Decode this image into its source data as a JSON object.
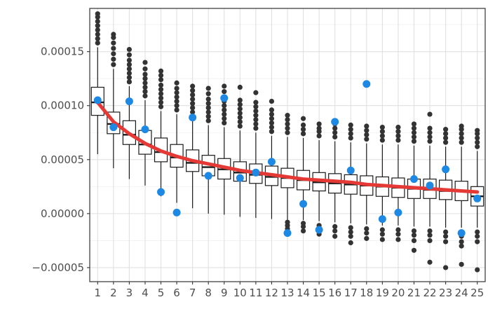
{
  "chart_data": {
    "type": "boxplot",
    "title": "",
    "xlabel": "",
    "ylabel": "",
    "categories": [
      "1",
      "2",
      "3",
      "4",
      "5",
      "6",
      "7",
      "8",
      "9",
      "10",
      "11",
      "12",
      "13",
      "14",
      "15",
      "16",
      "17",
      "18",
      "19",
      "20",
      "21",
      "22",
      "23",
      "24",
      "25"
    ],
    "y_ticks": [
      {
        "value": 0.00015,
        "label": "0.00015"
      },
      {
        "value": 0.0001,
        "label": "0.00010"
      },
      {
        "value": 5e-05,
        "label": "0.00005"
      },
      {
        "value": 0.0,
        "label": "0.00000"
      },
      {
        "value": -5e-05,
        "label": "−0.00005"
      }
    ],
    "ylim": [
      -6.3e-05,
      0.00019
    ],
    "grid": true,
    "colors": {
      "point": "#1e88e5",
      "curve": "#e53935",
      "outlier": "#333333",
      "box": "#1a1a1a",
      "grid_major": "#e0e0e0",
      "grid_minor": "#f0f0f0"
    },
    "boxes": [
      {
        "q1": 9.1e-05,
        "median": 0.000103,
        "q3": 0.000117,
        "whisker_low": 5.5e-05,
        "whisker_high": 0.000154,
        "outliers": [
          0.000158,
          0.000162,
          0.000166,
          0.00017,
          0.000174,
          0.000178,
          0.000182,
          0.000185
        ]
      },
      {
        "q1": 7.4e-05,
        "median": 8.3e-05,
        "q3": 9.4e-05,
        "whisker_low": 4.2e-05,
        "whisker_high": 0.000134,
        "outliers": [
          0.000138,
          0.000143,
          0.000148,
          0.000153,
          0.000158,
          0.000163,
          0.000166
        ]
      },
      {
        "q1": 6.4e-05,
        "median": 7.3e-05,
        "q3": 8.6e-05,
        "whisker_low": 3.2e-05,
        "whisker_high": 0.000118,
        "outliers": [
          0.000122,
          0.000126,
          0.00013,
          0.000134,
          0.000138,
          0.000142,
          0.000147,
          0.000152
        ]
      },
      {
        "q1": 5.5e-05,
        "median": 6.4e-05,
        "q3": 7.7e-05,
        "whisker_low": 2.6e-05,
        "whisker_high": 0.000105,
        "outliers": [
          0.000109,
          0.000113,
          0.000117,
          0.000121,
          0.000125,
          0.000129,
          0.000134,
          0.00014
        ]
      },
      {
        "q1": 4.8e-05,
        "median": 5.7e-05,
        "q3": 7e-05,
        "whisker_low": 1.6e-05,
        "whisker_high": 9.5e-05,
        "outliers": [
          9.9e-05,
          0.000103,
          0.000107,
          0.000111,
          0.000115,
          0.000119,
          0.000124,
          0.000128,
          0.000132
        ]
      },
      {
        "q1": 4.3e-05,
        "median": 5.2e-05,
        "q3": 6.4e-05,
        "whisker_low": 1e-05,
        "whisker_high": 9.2e-05,
        "outliers": [
          9.6e-05,
          0.0001,
          0.000104,
          0.000108,
          0.000112,
          0.000116,
          0.000121
        ]
      },
      {
        "q1": 3.9e-05,
        "median": 4.7e-05,
        "q3": 5.9e-05,
        "whisker_low": 5e-06,
        "whisker_high": 8.6e-05,
        "outliers": [
          9e-05,
          9.4e-05,
          9.8e-05,
          0.000102,
          0.000106,
          0.00011,
          0.000114,
          0.000118
        ]
      },
      {
        "q1": 3.5e-05,
        "median": 4.3e-05,
        "q3": 5.4e-05,
        "whisker_low": 0.0,
        "whisker_high": 8.2e-05,
        "outliers": [
          8.6e-05,
          9e-05,
          9.4e-05,
          9.8e-05,
          0.000102,
          0.000106,
          0.000111,
          0.000116
        ]
      },
      {
        "q1": 3.2e-05,
        "median": 4.1e-05,
        "q3": 5.1e-05,
        "whisker_low": -1e-06,
        "whisker_high": 8e-05,
        "outliers": [
          8.4e-05,
          8.8e-05,
          9.2e-05,
          9.6e-05,
          0.0001,
          0.000104,
          0.000108,
          0.000113,
          0.000118
        ]
      },
      {
        "q1": 3e-05,
        "median": 3.8e-05,
        "q3": 4.8e-05,
        "whisker_low": -3e-06,
        "whisker_high": 7.7e-05,
        "outliers": [
          8.1e-05,
          8.5e-05,
          8.9e-05,
          9.3e-05,
          9.7e-05,
          0.000101,
          0.000105,
          0.000117
        ]
      },
      {
        "q1": 2.8e-05,
        "median": 3.6e-05,
        "q3": 4.6e-05,
        "whisker_low": -4e-06,
        "whisker_high": 7.5e-05,
        "outliers": [
          7.9e-05,
          8.3e-05,
          8.7e-05,
          9.1e-05,
          9.5e-05,
          9.9e-05,
          0.000103,
          0.000112
        ]
      },
      {
        "q1": 2.6e-05,
        "median": 3.4e-05,
        "q3": 4.4e-05,
        "whisker_low": -5e-06,
        "whisker_high": 7.2e-05,
        "outliers": [
          7.6e-05,
          8e-05,
          8.4e-05,
          8.8e-05,
          9.2e-05,
          9.6e-05,
          0.000104
        ]
      },
      {
        "q1": 2.4e-05,
        "median": 3.3e-05,
        "q3": 4.2e-05,
        "whisker_low": -6e-06,
        "whisker_high": 7.1e-05,
        "outliers": [
          -8e-06,
          -1.1e-05,
          -1.4e-05,
          -1.8e-05,
          7.5e-05,
          7.9e-05,
          8.3e-05,
          8.7e-05,
          9.1e-05
        ]
      },
      {
        "q1": 2.2e-05,
        "median": 3.1e-05,
        "q3": 4e-05,
        "whisker_low": -6e-06,
        "whisker_high": 7e-05,
        "outliers": [
          -9e-06,
          -1.2e-05,
          -1.6e-05,
          7.4e-05,
          7.8e-05,
          8.2e-05,
          8.8e-05
        ]
      },
      {
        "q1": 2.1e-05,
        "median": 2.9e-05,
        "q3": 3.8e-05,
        "whisker_low": -7e-06,
        "whisker_high": 6.8e-05,
        "outliers": [
          -1.1e-05,
          -1.5e-05,
          -1.9e-05,
          7.2e-05,
          7.6e-05,
          7.9e-05,
          8.3e-05
        ]
      },
      {
        "q1": 1.9e-05,
        "median": 2.8e-05,
        "q3": 3.7e-05,
        "whisker_low": -8e-06,
        "whisker_high": 6.7e-05,
        "outliers": [
          -1.2e-05,
          -1.6e-05,
          -2.1e-05,
          7.1e-05,
          7.5e-05,
          7.9e-05,
          8.3e-05
        ]
      },
      {
        "q1": 1.8e-05,
        "median": 2.7e-05,
        "q3": 3.6e-05,
        "whisker_low": -9e-06,
        "whisker_high": 6.6e-05,
        "outliers": [
          -1.3e-05,
          -1.7e-05,
          -2.1e-05,
          -2.7e-05,
          7e-05,
          7.4e-05,
          7.8e-05,
          8.2e-05
        ]
      },
      {
        "q1": 1.7e-05,
        "median": 2.6e-05,
        "q3": 3.5e-05,
        "whisker_low": -1e-05,
        "whisker_high": 6.5e-05,
        "outliers": [
          -1.4e-05,
          -1.8e-05,
          -2.3e-05,
          6.9e-05,
          7.3e-05,
          7.7e-05,
          8.1e-05
        ]
      },
      {
        "q1": 1.6e-05,
        "median": 2.5e-05,
        "q3": 3.4e-05,
        "whisker_low": -1.1e-05,
        "whisker_high": 6.4e-05,
        "outliers": [
          -1.5e-05,
          -1.9e-05,
          -2.4e-05,
          6.8e-05,
          7.2e-05,
          7.6e-05,
          8e-05
        ]
      },
      {
        "q1": 1.5e-05,
        "median": 2.4e-05,
        "q3": 3.3e-05,
        "whisker_low": -1.1e-05,
        "whisker_high": 6.4e-05,
        "outliers": [
          -1.5e-05,
          -1.9e-05,
          -2.4e-05,
          6.8e-05,
          7.2e-05,
          7.6e-05,
          8e-05
        ]
      },
      {
        "q1": 1.4e-05,
        "median": 2.3e-05,
        "q3": 3.2e-05,
        "whisker_low": -1.2e-05,
        "whisker_high": 6.3e-05,
        "outliers": [
          -1.6e-05,
          -2e-05,
          -2.5e-05,
          -3.4e-05,
          6.7e-05,
          7.1e-05,
          7.5e-05,
          7.9e-05,
          8.3e-05
        ]
      },
      {
        "q1": 1.4e-05,
        "median": 2.2e-05,
        "q3": 3.2e-05,
        "whisker_low": -1.2e-05,
        "whisker_high": 6.3e-05,
        "outliers": [
          -1.6e-05,
          -2e-05,
          -2.5e-05,
          -4.5e-05,
          6.7e-05,
          7.1e-05,
          7.5e-05,
          7.9e-05,
          9.2e-05
        ]
      },
      {
        "q1": 1.3e-05,
        "median": 2.1e-05,
        "q3": 3.1e-05,
        "whisker_low": -1.3e-05,
        "whisker_high": 6.2e-05,
        "outliers": [
          -1.7e-05,
          -2.1e-05,
          -2.6e-05,
          -5e-05,
          6.6e-05,
          7e-05,
          7.4e-05,
          7.8e-05
        ]
      },
      {
        "q1": 1.2e-05,
        "median": 2.1e-05,
        "q3": 3e-05,
        "whisker_low": -1.3e-05,
        "whisker_high": 6.2e-05,
        "outliers": [
          -1.7e-05,
          -2.1e-05,
          -2.6e-05,
          -3e-05,
          -4.7e-05,
          6.6e-05,
          7e-05,
          7.4e-05,
          7.8e-05,
          8.1e-05
        ]
      },
      {
        "q1": 7e-06,
        "median": 1.6e-05,
        "q3": 2.5e-05,
        "whisker_low": -1.3e-05,
        "whisker_high": 5.8e-05,
        "outliers": [
          -1.7e-05,
          -2.1e-05,
          -2.6e-05,
          -5.2e-05,
          6.2e-05,
          6.6e-05,
          7e-05,
          7.4e-05,
          7.7e-05
        ]
      }
    ],
    "points": [
      0.000105,
      8e-05,
      0.000104,
      7.8e-05,
      2e-05,
      1e-06,
      8.9e-05,
      3.5e-05,
      0.000107,
      3.3e-05,
      3.8e-05,
      4.8e-05,
      -1.8e-05,
      9e-06,
      -1.5e-05,
      8.5e-05,
      4e-05,
      0.00012,
      -5e-06,
      1e-06,
      3.2e-05,
      2.6e-05,
      4.1e-05,
      -1.8e-05,
      1.4e-05
    ],
    "curve": [
      0.000103,
      8.5e-05,
      7.4e-05,
      6.5e-05,
      5.8e-05,
      5.3e-05,
      4.9e-05,
      4.6e-05,
      4.3e-05,
      4e-05,
      3.8e-05,
      3.6e-05,
      3.4e-05,
      3.2e-05,
      3.1e-05,
      3e-05,
      2.9e-05,
      2.7e-05,
      2.6e-05,
      2.5e-05,
      2.4e-05,
      2.3e-05,
      2.2e-05,
      2.1e-05,
      2e-05
    ]
  }
}
